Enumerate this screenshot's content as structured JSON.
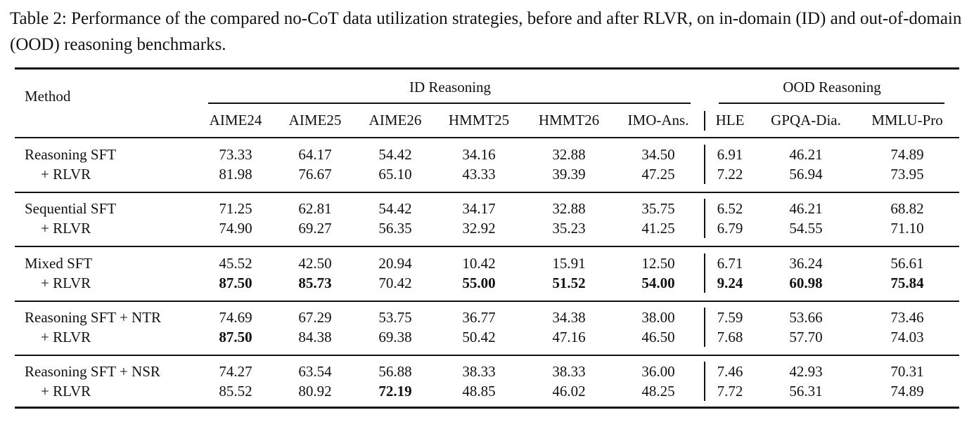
{
  "caption": "Table 2: Performance of the compared no-CoT data utilization strategies, before and after RLVR, on in-domain (ID) and out-of-domain (OOD) reasoning benchmarks.",
  "table": {
    "method_header": "Method",
    "groups": [
      {
        "label": "ID Reasoning"
      },
      {
        "label": "OOD Reasoning"
      }
    ],
    "columns": [
      "AIME24",
      "AIME25",
      "AIME26",
      "HMMT25",
      "HMMT26",
      "IMO-Ans.",
      "HLE",
      "GPQA-Dia.",
      "MMLU-Pro"
    ],
    "blocks": [
      {
        "rows": [
          {
            "method": "Reasoning SFT",
            "values": [
              "73.33",
              "64.17",
              "54.42",
              "34.16",
              "32.88",
              "34.50",
              "6.91",
              "46.21",
              "74.89"
            ],
            "bold": []
          },
          {
            "method": "+ RLVR",
            "values": [
              "81.98",
              "76.67",
              "65.10",
              "43.33",
              "39.39",
              "47.25",
              "7.22",
              "56.94",
              "73.95"
            ],
            "bold": []
          }
        ]
      },
      {
        "rows": [
          {
            "method": "Sequential SFT",
            "values": [
              "71.25",
              "62.81",
              "54.42",
              "34.17",
              "32.88",
              "35.75",
              "6.52",
              "46.21",
              "68.82"
            ],
            "bold": []
          },
          {
            "method": "+ RLVR",
            "values": [
              "74.90",
              "69.27",
              "56.35",
              "32.92",
              "35.23",
              "41.25",
              "6.79",
              "54.55",
              "71.10"
            ],
            "bold": []
          }
        ]
      },
      {
        "rows": [
          {
            "method": "Mixed SFT",
            "values": [
              "45.52",
              "42.50",
              "20.94",
              "10.42",
              "15.91",
              "12.50",
              "6.71",
              "36.24",
              "56.61"
            ],
            "bold": []
          },
          {
            "method": "+ RLVR",
            "values": [
              "87.50",
              "85.73",
              "70.42",
              "55.00",
              "51.52",
              "54.00",
              "9.24",
              "60.98",
              "75.84"
            ],
            "bold": [
              0,
              1,
              3,
              4,
              5,
              6,
              7,
              8
            ]
          }
        ]
      },
      {
        "rows": [
          {
            "method": "Reasoning SFT + NTR",
            "values": [
              "74.69",
              "67.29",
              "53.75",
              "36.77",
              "34.38",
              "38.00",
              "7.59",
              "53.66",
              "73.46"
            ],
            "bold": []
          },
          {
            "method": "+ RLVR",
            "values": [
              "87.50",
              "84.38",
              "69.38",
              "50.42",
              "47.16",
              "46.50",
              "7.68",
              "57.70",
              "74.03"
            ],
            "bold": [
              0
            ]
          }
        ]
      },
      {
        "rows": [
          {
            "method": "Reasoning SFT + NSR",
            "values": [
              "74.27",
              "63.54",
              "56.88",
              "38.33",
              "38.33",
              "36.00",
              "7.46",
              "42.93",
              "70.31"
            ],
            "bold": []
          },
          {
            "method": "+ RLVR",
            "values": [
              "85.52",
              "80.92",
              "72.19",
              "48.85",
              "46.02",
              "48.25",
              "7.72",
              "56.31",
              "74.89"
            ],
            "bold": [
              2
            ]
          }
        ]
      }
    ]
  }
}
